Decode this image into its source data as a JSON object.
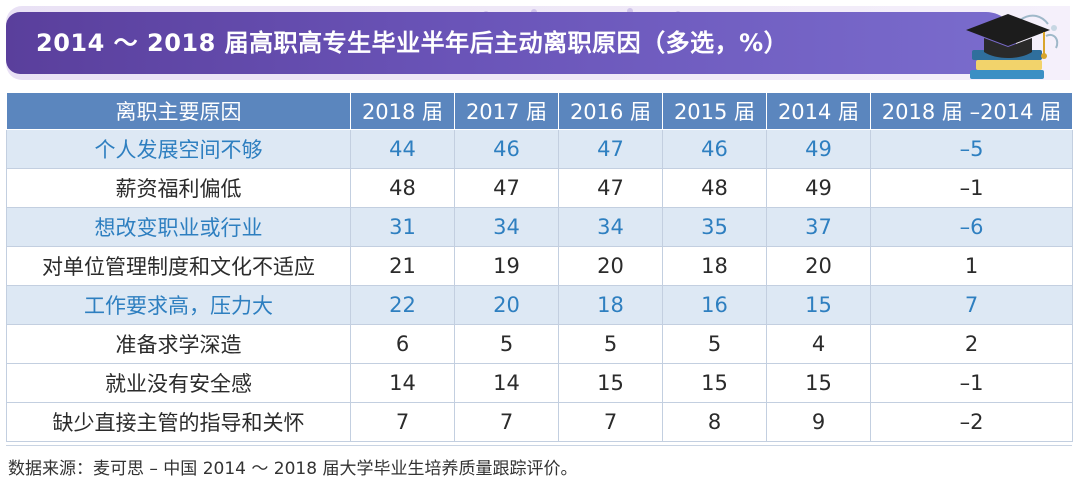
{
  "title": "2014 ～ 2018 届高职高专生毕业半年后主动离职原因（多选，%）",
  "icon": "graduation-cap-icon",
  "colors": {
    "title_bar": "#5a3f9c",
    "header": "#5b86be",
    "shaded_row": "#dde8f4",
    "shaded_text": "#2e7fc0"
  },
  "chart_data": {
    "type": "table",
    "title": "2014 ～ 2018 届高职高专生毕业半年后主动离职原因（多选，%）",
    "columns": [
      "离职主要原因",
      "2018 届",
      "2017 届",
      "2016 届",
      "2015 届",
      "2014 届",
      "2018 届 –2014 届"
    ],
    "rows": [
      {
        "reason": "个人发展空间不够",
        "values": [
          "44",
          "46",
          "47",
          "46",
          "49",
          "–5"
        ],
        "shaded": true
      },
      {
        "reason": "薪资福利偏低",
        "values": [
          "48",
          "47",
          "47",
          "48",
          "49",
          "–1"
        ],
        "shaded": false
      },
      {
        "reason": "想改变职业或行业",
        "values": [
          "31",
          "34",
          "34",
          "35",
          "37",
          "–6"
        ],
        "shaded": true
      },
      {
        "reason": "对单位管理制度和文化不适应",
        "values": [
          "21",
          "19",
          "20",
          "18",
          "20",
          "1"
        ],
        "shaded": false
      },
      {
        "reason": "工作要求高，压力大",
        "values": [
          "22",
          "20",
          "18",
          "16",
          "15",
          "7"
        ],
        "shaded": true
      },
      {
        "reason": "准备求学深造",
        "values": [
          "6",
          "5",
          "5",
          "5",
          "4",
          "2"
        ],
        "shaded": false
      },
      {
        "reason": "就业没有安全感",
        "values": [
          "14",
          "14",
          "15",
          "15",
          "15",
          "–1"
        ],
        "shaded": false
      },
      {
        "reason": "缺少直接主管的指导和关怀",
        "values": [
          "7",
          "7",
          "7",
          "8",
          "9",
          "–2"
        ],
        "shaded": false
      }
    ]
  },
  "source": "数据来源：麦可思 – 中国 2014 ～ 2018 届大学毕业生培养质量跟踪评价。"
}
